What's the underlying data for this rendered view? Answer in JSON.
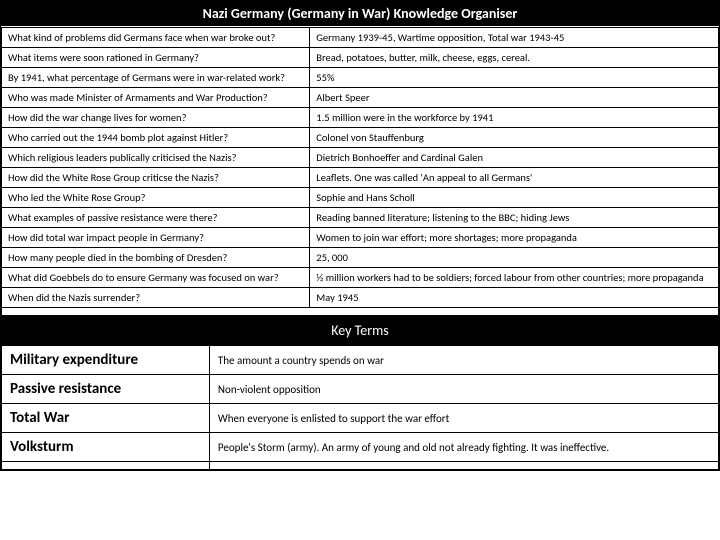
{
  "title": "Nazi Germany (Germany in War) Knowledge Organiser",
  "qa": [
    {
      "q": "What kind of problems did Germans face when war broke out?",
      "a": "Germany 1939-45, Wartime opposition, Total war 1943-45"
    },
    {
      "q": "What items were soon rationed in Germany?",
      "a": "Bread, potatoes, butter, milk, cheese, eggs, cereal."
    },
    {
      "q": "By 1941, what percentage of Germans were in war-related work?",
      "a": "55%"
    },
    {
      "q": "Who was made Minister of Armaments and War Production?",
      "a": "Albert Speer"
    },
    {
      "q": "How did the war change lives for women?",
      "a": "1.5 million were in the workforce by 1941"
    },
    {
      "q": "Who carried out the 1944 bomb plot against Hitler?",
      "a": "Colonel von Stauffenburg"
    },
    {
      "q": "Which religious leaders publically criticised the Nazis?",
      "a": "Dietrich Bonhoeffer and Cardinal Galen"
    },
    {
      "q": "How did the White Rose Group criticse the Nazis?",
      "a": "Leaflets. One was called 'An appeal to all Germans'"
    },
    {
      "q": "Who led the White Rose Group?",
      "a": "Sophie and Hans Scholl"
    },
    {
      "q": "What examples of passive resistance were there?",
      "a": "Reading banned literature; listening to the BBC; hiding Jews"
    },
    {
      "q": "How did total war impact people in Germany?",
      "a": "Women to join war effort; more shortages; more propaganda"
    },
    {
      "q": "How many people died in the bombing of Dresden?",
      "a": "25, 000"
    },
    {
      "q": "What did Goebbels do to ensure Germany was focused on war?",
      "a": "½ million workers had to be soldiers; forced labour from other countries; more propaganda"
    },
    {
      "q": "When did the Nazis surrender?",
      "a": "May 1945"
    }
  ],
  "keyterms_title": "Key Terms",
  "keyterms": [
    {
      "term": "Military expenditure",
      "def": "The amount a country spends on war"
    },
    {
      "term": "Passive resistance",
      "def": "Non-violent opposition"
    },
    {
      "term": "Total War",
      "def": "When everyone is enlisted to support the war effort"
    },
    {
      "term": "Volksturm",
      "def": "People's Storm (army). An army of young and old not already fighting. It was ineffective."
    }
  ],
  "colors": {
    "header_bg": "#000000",
    "header_fg": "#ffffff",
    "cell_bg": "#ffffff",
    "border": "#000000"
  }
}
